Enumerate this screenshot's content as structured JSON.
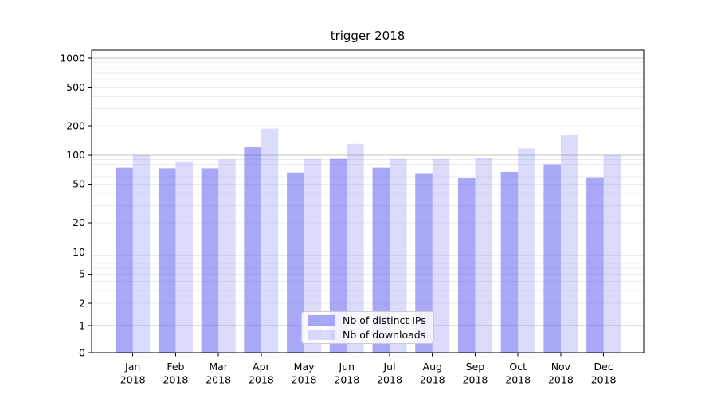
{
  "chart_data": {
    "type": "bar",
    "title": "trigger 2018",
    "categories": [
      "Jan",
      "Feb",
      "Mar",
      "Apr",
      "May",
      "Jun",
      "Jul",
      "Aug",
      "Sep",
      "Oct",
      "Nov",
      "Dec"
    ],
    "year": "2018",
    "series": [
      {
        "name": "Nb of distinct IPs",
        "color": "rgba(85,85,240,0.51)",
        "values": [
          74,
          73,
          73,
          120,
          66,
          91,
          74,
          65,
          58,
          67,
          80,
          59
        ]
      },
      {
        "name": "Nb of downloads",
        "color": "rgba(85,85,240,0.21)",
        "values": [
          100,
          86,
          90,
          187,
          91,
          130,
          91,
          91,
          93,
          117,
          160,
          100
        ]
      }
    ],
    "yscale": "symlog",
    "ylim": [
      0,
      1000
    ],
    "yticks": [
      0,
      1,
      2,
      5,
      10,
      20,
      50,
      100,
      200,
      500,
      1000
    ],
    "grid": {
      "major_color": "#c3c3c3",
      "minor_color": "#ececec",
      "minor_on": true
    },
    "legend_position": "lower-center",
    "axis_color": "#000000",
    "text_color": "#000000"
  }
}
